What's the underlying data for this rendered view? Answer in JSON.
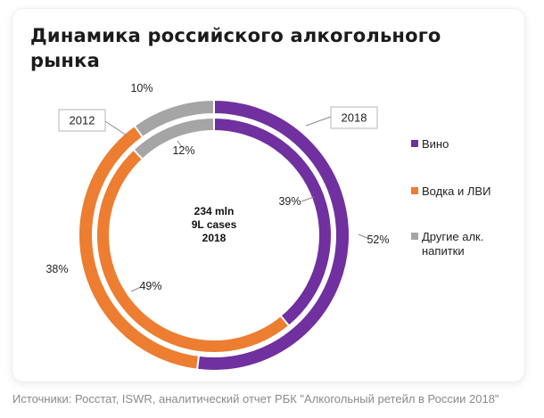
{
  "title_line1": "Динамика российского алкогольного",
  "title_line2": "рынка",
  "source": "Источники: Росстат, ISWR, аналитический отчет РБК \"Алкогольный ретейл в России 2018\"",
  "colors": {
    "wine": "#7030a0",
    "vodka": "#ed7d31",
    "other": "#a5a5a5"
  },
  "chart_data": {
    "type": "pie",
    "variant": "double-donut",
    "title": "Динамика российского алкогольного рынка",
    "center_label": [
      "234 mln",
      "9L cases",
      "2018"
    ],
    "year_labels": {
      "outer": "2018",
      "inner": "2012"
    },
    "legend": [
      "Вино",
      "Водка и ЛВИ",
      "Другие алк. напитки"
    ],
    "legend_lines": [
      [
        "Вино"
      ],
      [
        "Водка и ЛВИ"
      ],
      [
        "Другие алк.",
        "напитки"
      ]
    ],
    "legend_position": "right",
    "series": [
      {
        "name": "2018",
        "ring": "outer",
        "categories": [
          "Вино",
          "Водка и ЛВИ",
          "Другие алк. напитки"
        ],
        "values": [
          52,
          38,
          10
        ],
        "labels": [
          "52%",
          "38%",
          "10%"
        ]
      },
      {
        "name": "2012",
        "ring": "inner",
        "categories": [
          "Вино",
          "Водка и ЛВИ",
          "Другие алк. напитки"
        ],
        "values": [
          39,
          49,
          12
        ],
        "labels": [
          "39%",
          "49%",
          "12%"
        ]
      }
    ]
  }
}
